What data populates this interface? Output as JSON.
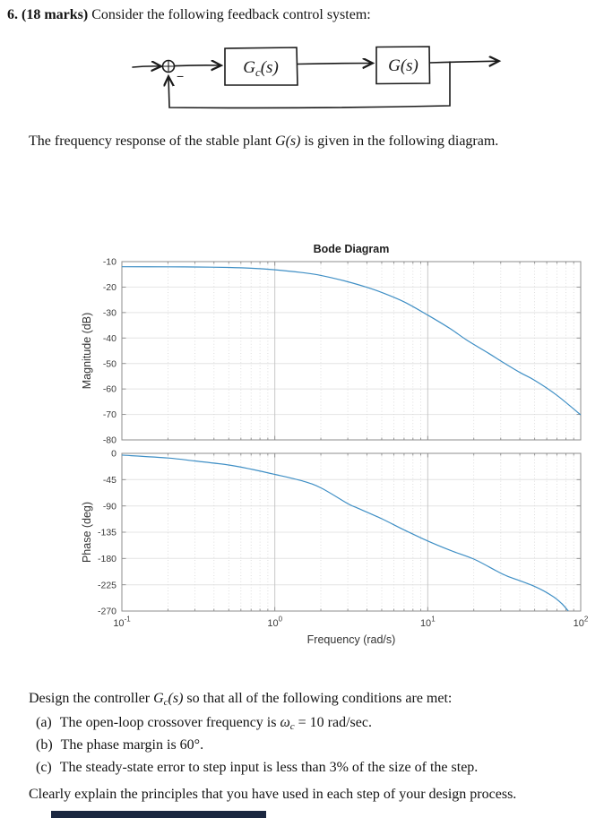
{
  "document": {
    "heading": {
      "bold": "6. (18 marks)",
      "rest": " Consider the following feedback control system:"
    },
    "intro": {
      "pre": "The frequency response of the stable plant ",
      "math": "G(s)",
      "post": " is given in the following diagram."
    },
    "design": {
      "pre": "Design the controller ",
      "math_base": "G",
      "math_sub": "c",
      "math_args": "(s)",
      "post": " so that all of the following conditions are met:",
      "items": [
        {
          "label": "(a)",
          "pre": "The open-loop crossover frequency is ",
          "math_base": "ω",
          "math_sub": "c",
          "post": " = 10 rad/sec."
        },
        {
          "label": "(b)",
          "text": "The phase margin is 60°."
        },
        {
          "label": "(c)",
          "text": "The steady-state error to step input is less than 3% of the size of the step."
        }
      ],
      "closing": "Clearly explain the principles that you have used in each step of your design process."
    }
  },
  "block_diagram": {
    "controller_label": {
      "base": "G",
      "sub": "c",
      "args": "(s)"
    },
    "plant_label": {
      "base": "G",
      "args": "(s)"
    },
    "feedback_sign": "−",
    "ink_color": "#1a1a1a"
  },
  "footer_bar": {
    "color": "#1b2740"
  },
  "chart_data": [
    {
      "type": "line",
      "title": "Bode Diagram",
      "ylabel": "Magnitude (dB)",
      "x_scale": "log",
      "xlim": [
        0.1,
        100
      ],
      "ylim": [
        -80,
        -10
      ],
      "yticks": [
        -10,
        -20,
        -30,
        -40,
        -50,
        -60,
        -70,
        -80
      ],
      "grid": true,
      "legend": "none",
      "series": [
        {
          "name": "magnitude",
          "color": "#3f8fc5",
          "points": [
            [
              0.1,
              -12
            ],
            [
              0.2,
              -12.05
            ],
            [
              0.3,
              -12.1
            ],
            [
              0.5,
              -12.3
            ],
            [
              0.7,
              -12.6
            ],
            [
              1,
              -13.2
            ],
            [
              1.5,
              -14.3
            ],
            [
              2,
              -15.4
            ],
            [
              3,
              -17.9
            ],
            [
              4,
              -20.1
            ],
            [
              5,
              -22.1
            ],
            [
              7,
              -25.8
            ],
            [
              10,
              -31
            ],
            [
              14,
              -36.3
            ],
            [
              18,
              -40.8
            ],
            [
              25,
              -46
            ],
            [
              30,
              -49
            ],
            [
              40,
              -53.5
            ],
            [
              50,
              -56.6
            ],
            [
              70,
              -62.5
            ],
            [
              100,
              -70.2
            ]
          ]
        }
      ]
    },
    {
      "type": "line",
      "ylabel": "Phase (deg)",
      "xlabel": "Frequency (rad/s)",
      "x_scale": "log",
      "xlim": [
        0.1,
        100
      ],
      "ylim": [
        -270,
        0
      ],
      "yticks": [
        0,
        -45,
        -90,
        -135,
        -180,
        -225,
        -270
      ],
      "xticks": [
        {
          "base": "10",
          "exp": "-1"
        },
        {
          "base": "10",
          "exp": "0"
        },
        {
          "base": "10",
          "exp": "1"
        },
        {
          "base": "10",
          "exp": "2"
        }
      ],
      "grid": true,
      "legend": "none",
      "series": [
        {
          "name": "phase",
          "color": "#3f8fc5",
          "points": [
            [
              0.1,
              -3
            ],
            [
              0.2,
              -8
            ],
            [
              0.3,
              -13
            ],
            [
              0.5,
              -20
            ],
            [
              0.7,
              -27
            ],
            [
              1,
              -36
            ],
            [
              1.5,
              -47
            ],
            [
              2,
              -59
            ],
            [
              3,
              -86
            ],
            [
              3.5,
              -94
            ],
            [
              5,
              -112
            ],
            [
              7,
              -131
            ],
            [
              10,
              -150
            ],
            [
              14,
              -166
            ],
            [
              20,
              -181
            ],
            [
              28,
              -201
            ],
            [
              33,
              -210
            ],
            [
              50,
              -228
            ],
            [
              65,
              -244
            ],
            [
              75,
              -257
            ],
            [
              83,
              -270
            ]
          ]
        }
      ]
    }
  ]
}
